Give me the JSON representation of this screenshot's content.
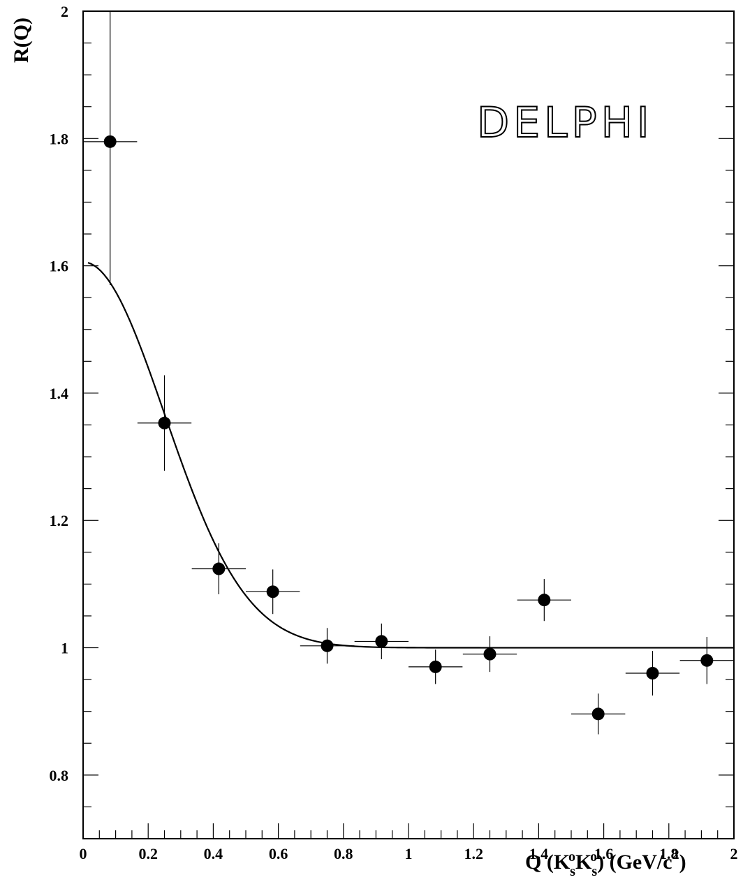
{
  "chart_data": {
    "type": "scatter",
    "xlabel": {
      "main": "Q (K",
      "sub1": "s",
      "sup1": "o",
      "k2": "K",
      "sub2": "s",
      "sup2": "o",
      "tail": ")  (GeV/c",
      "sup3": "2",
      "end": ")"
    },
    "ylabel": "R(Q)",
    "annotation": "DELPHI",
    "xlim": [
      0,
      2
    ],
    "ylim": [
      0.7,
      2.0
    ],
    "x_ticks": [
      "0",
      "0.2",
      "0.4",
      "0.6",
      "0.8",
      "1",
      "1.2",
      "1.4",
      "1.6",
      "1.8",
      "2"
    ],
    "y_ticks": [
      "0.8",
      "1",
      "1.2",
      "1.4",
      "1.6",
      "1.8",
      "2"
    ],
    "grid": false,
    "series": [
      {
        "points": [
          {
            "x": 0.083,
            "y": 1.795,
            "xerr": 0.083,
            "yerr_low": 0.225,
            "yerr_high": 0.225
          },
          {
            "x": 0.25,
            "y": 1.353,
            "xerr": 0.083,
            "yerr_low": 0.075,
            "yerr_high": 0.075
          },
          {
            "x": 0.417,
            "y": 1.124,
            "xerr": 0.083,
            "yerr_low": 0.04,
            "yerr_high": 0.04
          },
          {
            "x": 0.583,
            "y": 1.088,
            "xerr": 0.083,
            "yerr_low": 0.035,
            "yerr_high": 0.035
          },
          {
            "x": 0.75,
            "y": 1.003,
            "xerr": 0.083,
            "yerr_low": 0.028,
            "yerr_high": 0.028
          },
          {
            "x": 0.917,
            "y": 1.01,
            "xerr": 0.083,
            "yerr_low": 0.028,
            "yerr_high": 0.028
          },
          {
            "x": 1.083,
            "y": 0.97,
            "xerr": 0.083,
            "yerr_low": 0.027,
            "yerr_high": 0.027
          },
          {
            "x": 1.25,
            "y": 0.99,
            "xerr": 0.083,
            "yerr_low": 0.028,
            "yerr_high": 0.028
          },
          {
            "x": 1.417,
            "y": 1.075,
            "xerr": 0.083,
            "yerr_low": 0.033,
            "yerr_high": 0.033
          },
          {
            "x": 1.583,
            "y": 0.896,
            "xerr": 0.083,
            "yerr_low": 0.032,
            "yerr_high": 0.032
          },
          {
            "x": 1.75,
            "y": 0.96,
            "xerr": 0.083,
            "yerr_low": 0.035,
            "yerr_high": 0.035
          },
          {
            "x": 1.917,
            "y": 0.98,
            "xerr": 0.083,
            "yerr_low": 0.037,
            "yerr_high": 0.037
          }
        ]
      }
    ],
    "fit_curve": {
      "form": "1 + lambda*exp(-r^2 Q^2)",
      "lambda": 0.606,
      "r2": 8.0,
      "x_range": [
        0.015,
        2.0
      ]
    }
  }
}
